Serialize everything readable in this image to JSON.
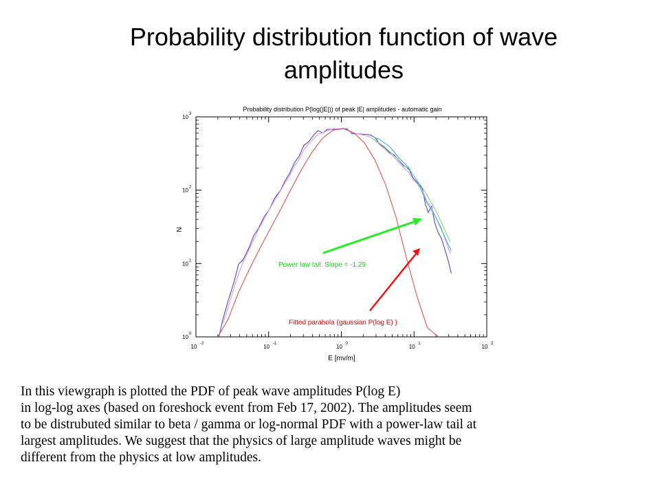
{
  "slide": {
    "title_lines": [
      "Probability distribution function of wave",
      "amplitudes"
    ],
    "caption_lines": [
      "In this viewgraph is plotted the PDF of peak wave amplitudes P(log E)",
      "in log-log axes (based on foreshock event from Feb 17, 2002). The amplitudes seem",
      "to be distrubuted similar to beta / gamma or log-normal PDF with a power-law tail at",
      "largest amplitudes. We suggest that the physics of large amplitude waves might be",
      "different from the physics at low amplitudes."
    ]
  },
  "chart_data": {
    "type": "line",
    "title": "Probability distribution P(log(|E|)) of peak |E| amplitudes - automatic gain",
    "xlabel": "E [mv/m]",
    "ylabel": "N",
    "x_scale": "log",
    "y_scale": "log",
    "xlim": [
      0.01,
      100
    ],
    "ylim": [
      1,
      1000
    ],
    "x_ticks": [
      {
        "base": "10",
        "exp": "-2"
      },
      {
        "base": "10",
        "exp": "-1"
      },
      {
        "base": "10",
        "exp": "0"
      },
      {
        "base": "10",
        "exp": "1"
      },
      {
        "base": "10",
        "exp": "2"
      }
    ],
    "y_ticks": [
      {
        "base": "10",
        "exp": "0"
      },
      {
        "base": "10",
        "exp": "1"
      },
      {
        "base": "10",
        "exp": "2"
      },
      {
        "base": "10",
        "exp": "3"
      }
    ],
    "series": [
      {
        "color": "#4a4ad8",
        "x": [
          0.0207,
          0.0235,
          0.0277,
          0.0332,
          0.0386,
          0.0448,
          0.0538,
          0.0624,
          0.0724,
          0.0869,
          0.101,
          0.121,
          0.145,
          0.168,
          0.195,
          0.227,
          0.263,
          0.305,
          0.354,
          0.411,
          0.477,
          0.553,
          0.642,
          0.77,
          0.894,
          1.04,
          1.2,
          1.4,
          1.62,
          1.88,
          2.18,
          2.53,
          2.94,
          3.41,
          3.96,
          4.59,
          5.33,
          6.19,
          7.18,
          8.33,
          9.67,
          11.2,
          13.0,
          14.4,
          15.7,
          17.4,
          19.3,
          21.4,
          23.8,
          26.3,
          29.2,
          32.5
        ],
        "y": [
          1.0,
          1.74,
          3.09,
          5.49,
          9.77,
          11.4,
          16.6,
          24.1,
          30.0,
          43.6,
          53.4,
          77.6,
          99.0,
          134,
          170,
          238,
          292,
          409,
          458,
          557,
          651,
          602,
          675,
          675,
          675,
          687,
          687,
          589,
          589,
          581,
          577,
          567,
          515,
          418,
          382,
          327,
          304,
          254,
          216,
          200,
          148,
          125,
          106,
          63.3,
          49.7,
          60.4,
          36.1,
          26.5,
          22.0,
          16.0,
          11.3,
          7.37
        ]
      },
      {
        "color": "#d898d8",
        "x": [
          0.0235,
          0.0277,
          0.0332,
          0.0386,
          0.0448,
          0.0538,
          0.0624,
          0.0724,
          0.0869,
          0.101,
          0.121,
          0.145,
          0.168,
          0.195,
          0.227,
          0.263,
          0.305,
          0.354,
          0.411,
          0.477,
          0.553,
          0.642,
          0.77,
          0.894,
          1.04,
          1.2,
          1.4,
          1.62,
          1.88,
          2.18,
          2.53,
          2.94,
          3.41,
          3.96,
          4.59,
          5.33,
          6.19,
          7.18,
          8.33,
          9.67,
          11.2,
          13.0,
          15.0,
          17.4,
          20.2,
          23.5,
          27.2,
          31.6
        ],
        "y": [
          1.52,
          2.52,
          4.57,
          7.25,
          10.5,
          15.5,
          21.2,
          29.1,
          40.7,
          53.3,
          73.3,
          97.6,
          127,
          158,
          214,
          263,
          355,
          428,
          497,
          581,
          604,
          650,
          690,
          690,
          690,
          660,
          611,
          589,
          573,
          553,
          527,
          474,
          412,
          365,
          318,
          284,
          240,
          204,
          178,
          140,
          120,
          98.9,
          71.3,
          57.0,
          41.3,
          31.4,
          20.6,
          13.6
        ]
      },
      {
        "color": "#3fb0c8",
        "x": [
          2.7,
          3.41,
          4.59,
          6.19,
          8.33,
          11.2,
          15.0,
          20.2,
          27.2,
          32.5
        ],
        "y": [
          539,
          487,
          395,
          277,
          207,
          130,
          67.6,
          41.9,
          21.7,
          14.8
        ]
      },
      {
        "color": "#7fd87f",
        "x": [
          2.7,
          3.96,
          5.95,
          9.06,
          13.7,
          20.8,
          31.6
        ],
        "y": [
          508,
          389,
          267,
          178,
          101,
          48.7,
          19.5
        ]
      },
      {
        "color": "#e85050",
        "x": [
          0.0198,
          0.0277,
          0.0386,
          0.0538,
          0.075,
          0.104,
          0.145,
          0.203,
          0.283,
          0.394,
          0.549,
          0.766,
          1.07,
          1.49,
          2.08,
          2.89,
          4.03,
          5.62,
          7.84,
          10.9,
          15.2,
          21.2,
          29.6,
          32.5
        ],
        "y": [
          0.98,
          1.74,
          4.07,
          8.18,
          15.8,
          29.2,
          53.8,
          103,
          191,
          329,
          511,
          657,
          699,
          605,
          441,
          260,
          121,
          43.6,
          12.0,
          3.67,
          1.34,
          1.02,
          0.79,
          0.97
        ]
      }
    ],
    "annotations": [
      {
        "text": "Power law tail: Slope = -1.29",
        "color": "#00dd00"
      },
      {
        "text": "Fitted parabola (gaussian P(log E) )",
        "color": "#ee0000"
      }
    ]
  }
}
